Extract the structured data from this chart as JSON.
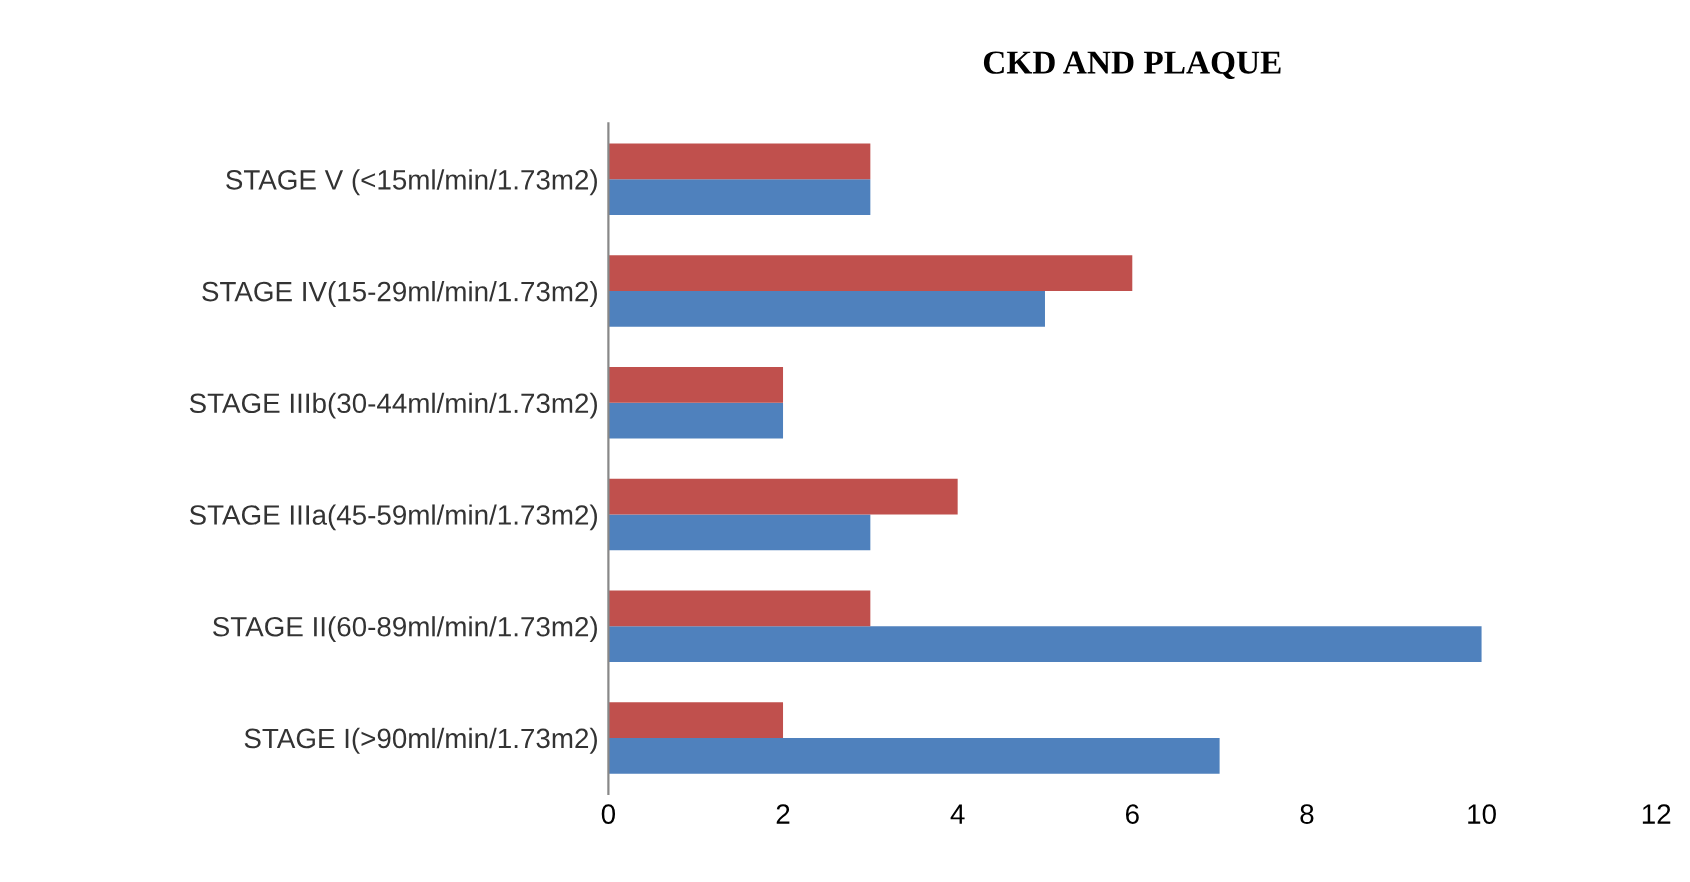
{
  "chart_data": {
    "type": "bar",
    "orientation": "horizontal",
    "title": "CKD AND PLAQUE",
    "categories": [
      "STAGE V (<15ml/min/1.73m2)",
      "STAGE IV(15-29ml/min/1.73m2)",
      "STAGE IIIb(30-44ml/min/1.73m2)",
      "STAGE IIIa(45-59ml/min/1.73m2)",
      "STAGE II(60-89ml/min/1.73m2)",
      "STAGE I(>90ml/min/1.73m2)"
    ],
    "series": [
      {
        "color": "#4f81bd",
        "values": [
          3,
          5,
          2,
          3,
          10,
          7
        ]
      },
      {
        "color": "#c0504d",
        "values": [
          3,
          6,
          2,
          4,
          3,
          2
        ]
      }
    ],
    "xlim": [
      0,
      12
    ],
    "xticks": [
      0,
      2,
      4,
      6,
      8,
      10,
      12
    ],
    "grid": false,
    "legend": false
  }
}
